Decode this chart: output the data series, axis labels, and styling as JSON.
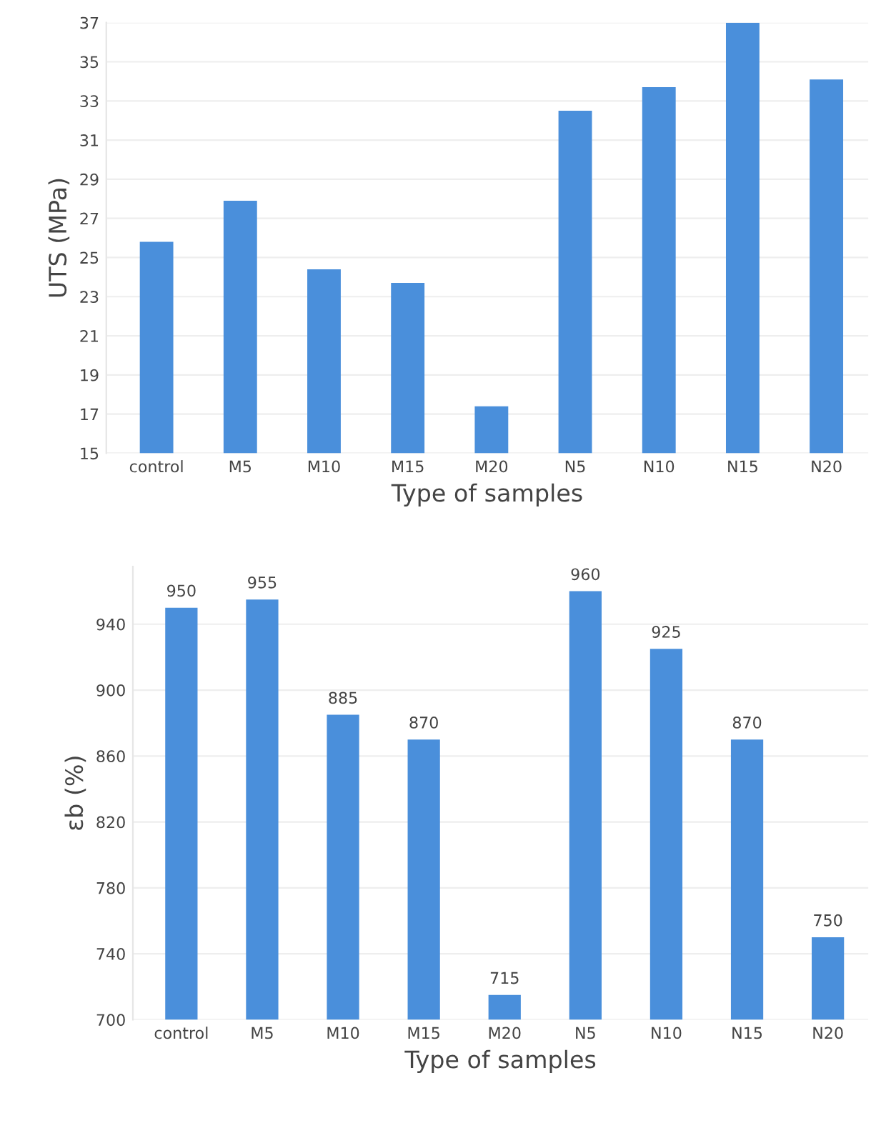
{
  "chart_data": [
    {
      "type": "bar",
      "ylabel": "UTS (MPa)",
      "xlabel": "Type of samples",
      "categories": [
        "control",
        "M5",
        "M10",
        "M15",
        "M20",
        "N5",
        "N10",
        "N15",
        "N20"
      ],
      "values": [
        25.8,
        27.9,
        24.4,
        23.7,
        17.4,
        32.5,
        33.7,
        37,
        34.1
      ],
      "color": "#4a8fdb",
      "ylim": [
        15,
        37
      ],
      "yticks": [
        15,
        17,
        19,
        21,
        23,
        25,
        27,
        29,
        31,
        33,
        35,
        37
      ],
      "grid": "y"
    },
    {
      "type": "bar",
      "ylabel": "εb (%)",
      "xlabel": "Type of samples",
      "categories": [
        "control",
        "M5",
        "M10",
        "M15",
        "M20",
        "N5",
        "N10",
        "N15",
        "N20"
      ],
      "values": [
        950,
        955,
        885,
        870,
        715,
        960,
        925,
        870,
        750
      ],
      "color": "#4a8fdb",
      "ylim": [
        700,
        975
      ],
      "yticks": [
        700,
        740,
        780,
        820,
        860,
        900,
        940
      ],
      "grid": "y",
      "data_labels": true
    }
  ]
}
